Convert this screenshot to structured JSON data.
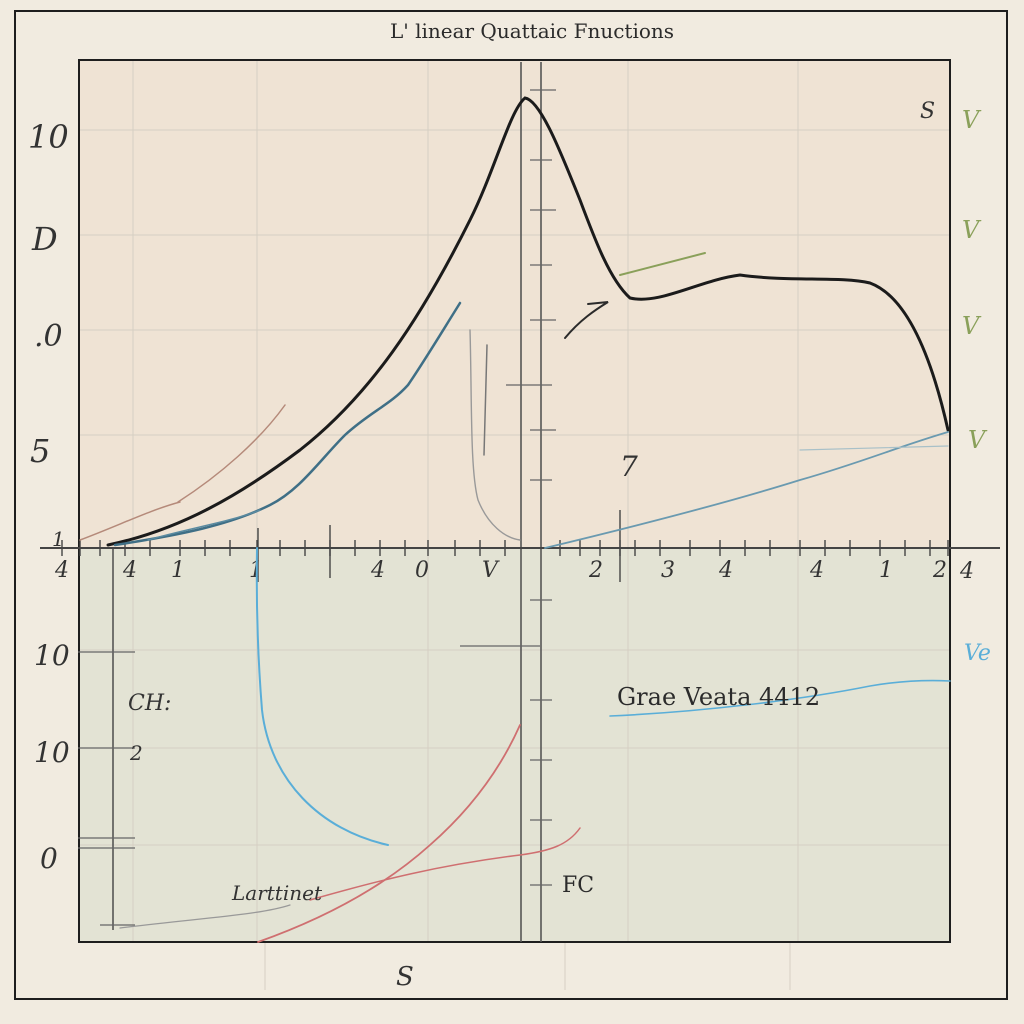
{
  "chart_data": {
    "type": "line",
    "title": "L' linear Quattaic Fnuctions",
    "y_tick_labels_upper": [
      "10",
      "D",
      ".0",
      "5",
      "1"
    ],
    "y_tick_labels_lower": [
      "10",
      "10",
      "0"
    ],
    "x_tick_labels": [
      "4",
      "1",
      "1",
      "4",
      "0",
      "V",
      "2",
      "3",
      "4",
      "4",
      "1",
      "2",
      "4"
    ],
    "right_marks": [
      "S",
      "V",
      "V",
      "V",
      "V",
      "Ve"
    ],
    "annotations": {
      "graph_label": "Grae Veata 4412",
      "left_label": "CH:",
      "left_label_2": "2",
      "bottom_label": "Larttinet",
      "fc_label": "FC",
      "slash_mark": "7",
      "x_axis_end": "4"
    },
    "footer_label": "S",
    "colors": {
      "black": "#1b1b1b",
      "teal": "#3f6f86",
      "blue": "#5aaed8",
      "red": "#cf6f70",
      "grid": "#d6cfc3",
      "lower_fill": "#e3e3d4",
      "upper_fill": "#efe3d4"
    }
  }
}
